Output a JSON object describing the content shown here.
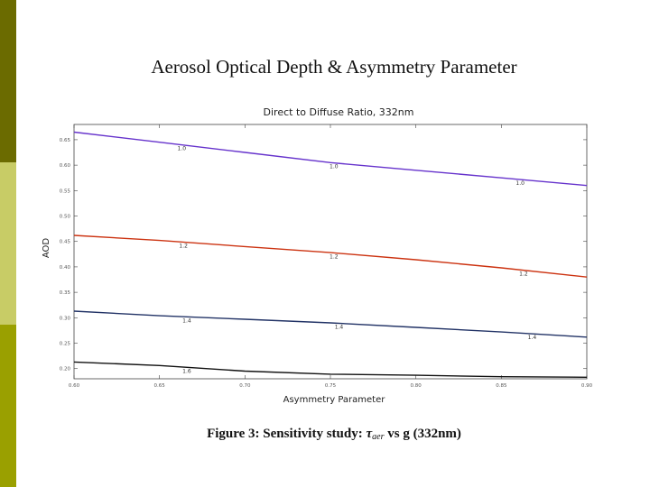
{
  "slide": {
    "title": "Aerosol Optical Depth & Asymmetry Parameter",
    "caption_prefix": "Figure 3: Sensitivity study: ",
    "caption_tau": "τ",
    "caption_sub": "aer",
    "caption_suffix": " vs g (332nm)",
    "accent_colors": [
      "#6b6b00",
      "#c8cc66",
      "#9aa000"
    ]
  },
  "chart_data": {
    "type": "line",
    "title": "Direct to Diffuse Ratio, 332nm",
    "xlabel": "Asymmetry Parameter",
    "ylabel": "AOD",
    "xlim": [
      0.6,
      0.9
    ],
    "ylim": [
      0.18,
      0.68
    ],
    "xticks": [
      "0.60",
      "0.65",
      "0.70",
      "0.75",
      "0.80",
      "0.85",
      "0.90"
    ],
    "yticks": [
      "0.20",
      "0.25",
      "0.30",
      "0.35",
      "0.40",
      "0.45",
      "0.50",
      "0.55",
      "0.60",
      "0.65"
    ],
    "grid": false,
    "series": [
      {
        "name": "1.0",
        "color": "#6633cc",
        "x": [
          0.6,
          0.65,
          0.7,
          0.75,
          0.8,
          0.85,
          0.9
        ],
        "y": [
          0.665,
          0.645,
          0.625,
          0.605,
          0.59,
          0.575,
          0.56
        ],
        "labels": [
          {
            "x": 0.663,
            "text": "1.0"
          },
          {
            "x": 0.752,
            "text": "1.0"
          },
          {
            "x": 0.861,
            "text": "1.0"
          }
        ]
      },
      {
        "name": "1.2",
        "color": "#cc3311",
        "x": [
          0.6,
          0.65,
          0.7,
          0.75,
          0.8,
          0.85,
          0.9
        ],
        "y": [
          0.462,
          0.452,
          0.44,
          0.428,
          0.414,
          0.398,
          0.38
        ],
        "labels": [
          {
            "x": 0.664,
            "text": "1.2"
          },
          {
            "x": 0.752,
            "text": "1.2"
          },
          {
            "x": 0.863,
            "text": "1.2"
          }
        ]
      },
      {
        "name": "1.4",
        "color": "#223366",
        "x": [
          0.6,
          0.65,
          0.7,
          0.75,
          0.8,
          0.85,
          0.9
        ],
        "y": [
          0.313,
          0.304,
          0.297,
          0.29,
          0.281,
          0.272,
          0.262
        ],
        "labels": [
          {
            "x": 0.666,
            "text": "1.4"
          },
          {
            "x": 0.755,
            "text": "1.4"
          },
          {
            "x": 0.868,
            "text": "1.4"
          }
        ]
      },
      {
        "name": "1.6",
        "color": "#111111",
        "x": [
          0.6,
          0.65,
          0.7,
          0.75,
          0.8,
          0.85,
          0.9
        ],
        "y": [
          0.213,
          0.206,
          0.195,
          0.189,
          0.187,
          0.184,
          0.183
        ],
        "labels": [
          {
            "x": 0.666,
            "text": "1.6"
          }
        ]
      }
    ]
  }
}
